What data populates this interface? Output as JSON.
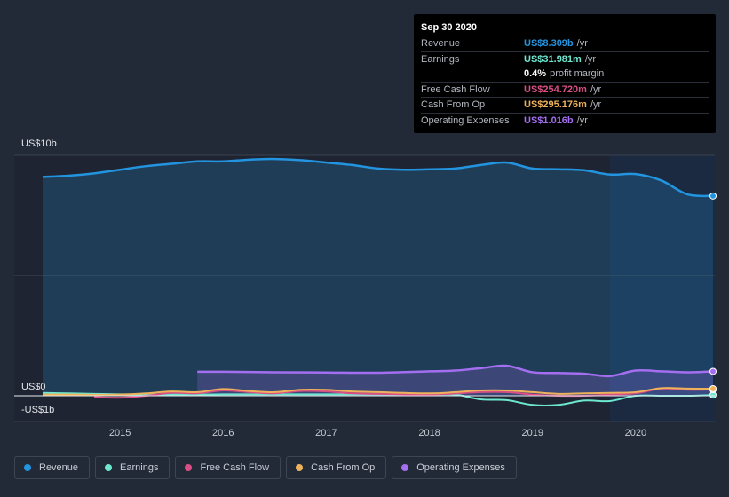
{
  "tooltip": {
    "date": "Sep 30 2020",
    "rows": [
      {
        "label": "Revenue",
        "value": "US$8.309b",
        "unit": "/yr",
        "color": "#2394df"
      },
      {
        "label": "Earnings",
        "value": "US$31.981m",
        "unit": "/yr",
        "color": "#6ee7d0"
      },
      {
        "label": "",
        "value": "0.4%",
        "unit": "profit margin",
        "color": "#ffffff"
      },
      {
        "label": "Free Cash Flow",
        "value": "US$254.720m",
        "unit": "/yr",
        "color": "#d94f85"
      },
      {
        "label": "Cash From Op",
        "value": "US$295.176m",
        "unit": "/yr",
        "color": "#eeb25b"
      },
      {
        "label": "Operating Expenses",
        "value": "US$1.016b",
        "unit": "/yr",
        "color": "#a46ef0"
      }
    ]
  },
  "legend": [
    {
      "label": "Revenue",
      "color": "#2394df"
    },
    {
      "label": "Earnings",
      "color": "#6ee7d0"
    },
    {
      "label": "Free Cash Flow",
      "color": "#d94f85"
    },
    {
      "label": "Cash From Op",
      "color": "#eeb25b"
    },
    {
      "label": "Operating Expenses",
      "color": "#a46ef0"
    }
  ],
  "chart_data": {
    "type": "area",
    "title": "",
    "xlabel": "",
    "ylabel": "",
    "ylim": [
      -1,
      10
    ],
    "y_tick_labels": [
      "US$10b",
      "US$0",
      "-US$1b"
    ],
    "x_tick_labels": [
      "2015",
      "2016",
      "2017",
      "2018",
      "2019",
      "2020"
    ],
    "x_range": [
      2014.25,
      2020.75
    ],
    "highlight_start": 2019.75,
    "series": [
      {
        "name": "Revenue",
        "color": "#2394df",
        "fill": true,
        "x": [
          2014.25,
          2014.5,
          2014.75,
          2015.0,
          2015.25,
          2015.5,
          2015.75,
          2016.0,
          2016.25,
          2016.5,
          2016.75,
          2017.0,
          2017.25,
          2017.5,
          2017.75,
          2018.0,
          2018.25,
          2018.5,
          2018.75,
          2019.0,
          2019.25,
          2019.5,
          2019.75,
          2020.0,
          2020.25,
          2020.5,
          2020.75
        ],
        "values": [
          9.1,
          9.15,
          9.25,
          9.4,
          9.55,
          9.65,
          9.75,
          9.75,
          9.82,
          9.85,
          9.8,
          9.7,
          9.6,
          9.45,
          9.4,
          9.42,
          9.45,
          9.6,
          9.7,
          9.45,
          9.42,
          9.38,
          9.2,
          9.22,
          8.95,
          8.38,
          8.309
        ]
      },
      {
        "name": "Operating Expenses",
        "color": "#a46ef0",
        "fill": true,
        "x": [
          2015.75,
          2016.0,
          2016.5,
          2017.0,
          2017.5,
          2018.0,
          2018.25,
          2018.5,
          2018.75,
          2019.0,
          2019.25,
          2019.5,
          2019.75,
          2020.0,
          2020.25,
          2020.5,
          2020.75
        ],
        "values": [
          1.0,
          1.0,
          0.98,
          0.97,
          0.96,
          1.02,
          1.05,
          1.15,
          1.25,
          0.98,
          0.95,
          0.92,
          0.82,
          1.05,
          1.02,
          0.98,
          1.016
        ]
      },
      {
        "name": "Earnings",
        "color": "#6ee7d0",
        "fill": false,
        "x": [
          2014.25,
          2014.5,
          2014.75,
          2015.0,
          2015.25,
          2015.5,
          2015.75,
          2016.0,
          2016.5,
          2017.0,
          2017.5,
          2018.0,
          2018.25,
          2018.5,
          2018.75,
          2019.0,
          2019.25,
          2019.5,
          2019.75,
          2020.0,
          2020.25,
          2020.5,
          2020.75
        ],
        "values": [
          0.12,
          0.1,
          0.08,
          0.06,
          0.05,
          0.05,
          0.05,
          0.06,
          0.06,
          0.06,
          0.06,
          0.05,
          0.05,
          -0.15,
          -0.18,
          -0.38,
          -0.38,
          -0.2,
          -0.22,
          0.0,
          0.0,
          0.0,
          0.032
        ]
      },
      {
        "name": "Free Cash Flow",
        "color": "#d94f85",
        "fill": false,
        "x": [
          2014.75,
          2015.0,
          2015.25,
          2015.5,
          2015.75,
          2016.0,
          2016.25,
          2016.5,
          2016.75,
          2017.0,
          2017.25,
          2017.5,
          2018.0,
          2018.5,
          2018.75,
          2019.0,
          2019.25,
          2019.5,
          2019.75,
          2020.0,
          2020.25,
          2020.5,
          2020.75
        ],
        "values": [
          -0.05,
          -0.08,
          0.0,
          0.12,
          0.1,
          0.22,
          0.15,
          0.1,
          0.2,
          0.18,
          0.1,
          0.08,
          0.05,
          0.15,
          0.15,
          0.05,
          0.0,
          0.0,
          0.05,
          0.1,
          0.3,
          0.25,
          0.255
        ]
      },
      {
        "name": "Cash From Op",
        "color": "#eeb25b",
        "fill": false,
        "x": [
          2014.25,
          2014.5,
          2014.75,
          2015.0,
          2015.25,
          2015.5,
          2015.75,
          2016.0,
          2016.25,
          2016.5,
          2016.75,
          2017.0,
          2017.25,
          2017.5,
          2018.0,
          2018.25,
          2018.5,
          2018.75,
          2019.0,
          2019.25,
          2019.5,
          2019.75,
          2020.0,
          2020.25,
          2020.5,
          2020.75
        ],
        "values": [
          0.05,
          0.05,
          0.04,
          0.05,
          0.1,
          0.18,
          0.15,
          0.28,
          0.2,
          0.15,
          0.25,
          0.25,
          0.18,
          0.15,
          0.1,
          0.15,
          0.22,
          0.22,
          0.15,
          0.08,
          0.1,
          0.12,
          0.15,
          0.32,
          0.3,
          0.295
        ]
      }
    ]
  }
}
